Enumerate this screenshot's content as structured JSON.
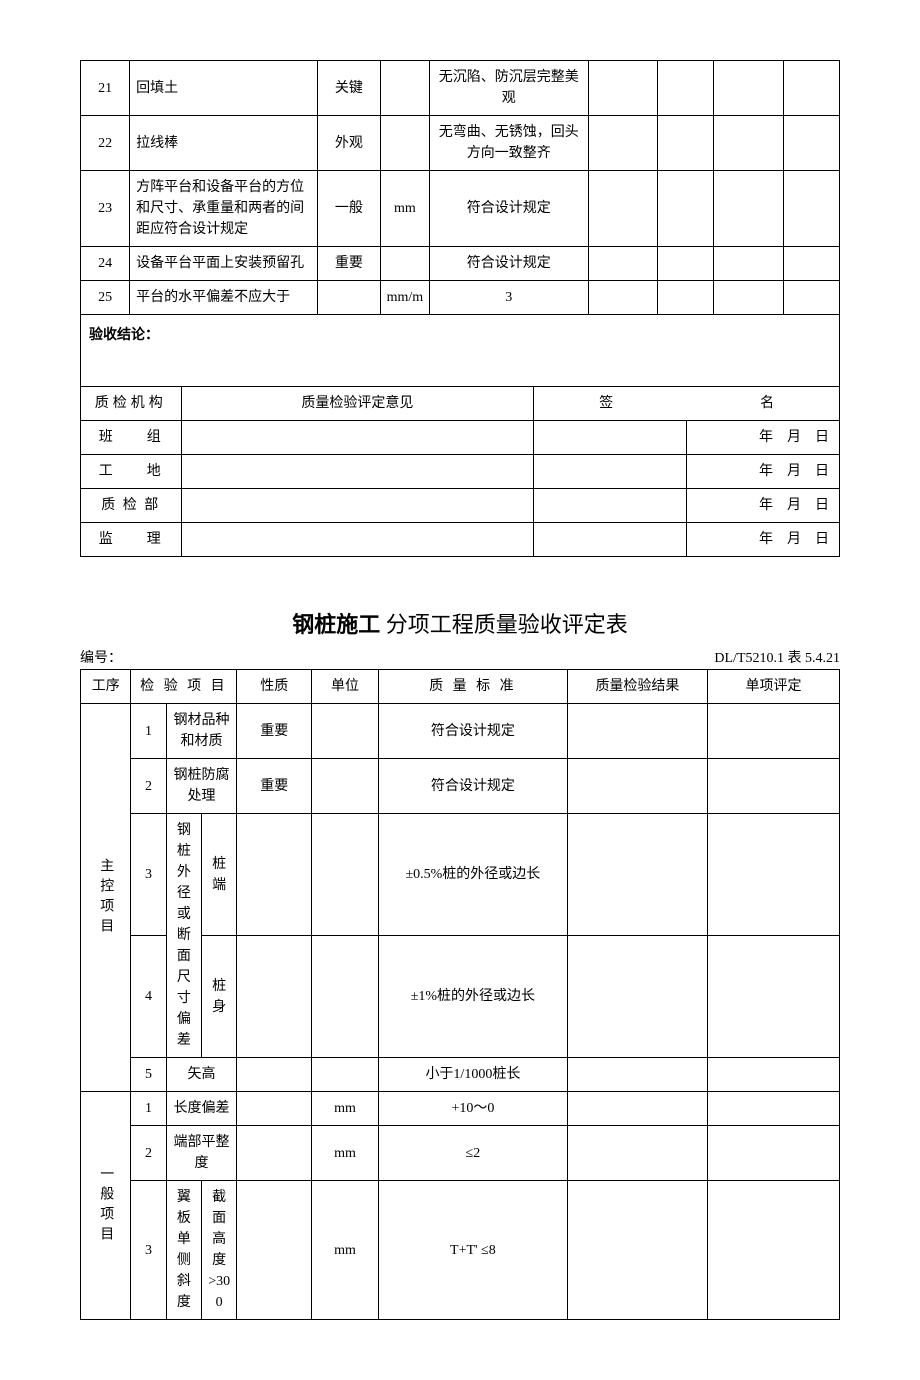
{
  "table1": {
    "rows": [
      {
        "n": "21",
        "item": "回填土",
        "nature": "关键",
        "unit": "",
        "std": "无沉陷、防沉层完整美观"
      },
      {
        "n": "22",
        "item": "拉线棒",
        "nature": "外观",
        "unit": "",
        "std": "无弯曲、无锈蚀，回头方向一致整齐"
      },
      {
        "n": "23",
        "item": "方阵平台和设备平台的方位和尺寸、承重量和两者的间距应符合设计规定",
        "nature": "一般",
        "unit": "mm",
        "std": "符合设计规定"
      },
      {
        "n": "24",
        "item": "设备平台平面上安装预留孔",
        "nature": "重要",
        "unit": "",
        "std": "符合设计规定"
      },
      {
        "n": "25",
        "item": "平台的水平偏差不应大于",
        "nature": "",
        "unit": "mm/m",
        "std": "3"
      }
    ],
    "conclusion_label": "验收结论："
  },
  "table2": {
    "hdr": {
      "org": "质检机构",
      "opinion": "质量检验评定意见",
      "sig_pre": "签",
      "sig_suf": "名"
    },
    "rows": [
      {
        "org": "班　　组",
        "date": "年　月　日"
      },
      {
        "org": "工　　地",
        "date": "年　月　日"
      },
      {
        "org": "质 检 部",
        "date": "年　月　日"
      },
      {
        "org": "监　　理",
        "date": "年　月　日"
      }
    ]
  },
  "title": {
    "main": "钢桩施工",
    "sub": " 分项工程质量验收评定表"
  },
  "subhdr": {
    "left": "编号：",
    "right": "DL/T5210.1 表 5.4.21"
  },
  "table3": {
    "hdr": {
      "seq": "工序",
      "item": "检 验 项 目",
      "nature": "性质",
      "unit": "单位",
      "std": "质 量 标 准",
      "res": "质量检验结果",
      "eval": "单项评定"
    },
    "group1": {
      "label": "主控项目"
    },
    "group2": {
      "label": "一般项目"
    },
    "rows1": [
      {
        "idx": "1",
        "item": "钢材品种和材质",
        "nature": "重要",
        "unit": "",
        "std": "符合设计规定"
      },
      {
        "idx": "2",
        "item": "钢桩防腐处理",
        "nature": "重要",
        "unit": "",
        "std": "符合设计规定"
      }
    ],
    "merge34_label": "钢桩外径或断面尺寸偏差",
    "row3": {
      "idx": "3",
      "b": "桩端",
      "std": "±0.5%桩的外径或边长"
    },
    "row4": {
      "idx": "4",
      "b": "桩身",
      "std": "±1%桩的外径或边长"
    },
    "row5": {
      "idx": "5",
      "item": "矢高",
      "std": "小于1/1000桩长"
    },
    "rows2": [
      {
        "idx": "1",
        "item": "长度偏差",
        "unit": "mm",
        "std": "+10～0"
      },
      {
        "idx": "2",
        "item": "端部平整度",
        "unit": "mm",
        "std": "≤2"
      }
    ],
    "row2_3": {
      "idx": "3",
      "a": "翼板单侧斜度",
      "b": "截面高度>300",
      "unit": "mm",
      "std": "T+T' ≤8"
    }
  }
}
